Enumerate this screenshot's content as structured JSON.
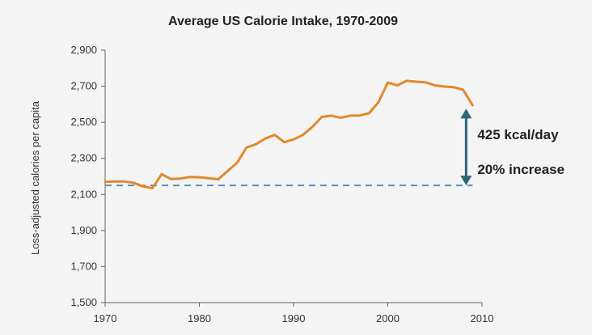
{
  "chart_data": {
    "type": "line",
    "title": "Average US Calorie Intake, 1970-2009",
    "xlabel": "",
    "ylabel": "Loss-adjusted calories per capita",
    "xlim": [
      1970,
      2010
    ],
    "ylim": [
      1500,
      2900
    ],
    "xticks": [
      1970,
      1980,
      1990,
      2000,
      2010
    ],
    "yticks": [
      1500,
      1700,
      1900,
      2100,
      2300,
      2500,
      2700,
      2900
    ],
    "ytick_labels": [
      "1,500",
      "1,700",
      "1,900",
      "2,100",
      "2,300",
      "2,500",
      "2,700",
      "2,900"
    ],
    "grid": false,
    "series": [
      {
        "color": "#e08a2b",
        "x": [
          1970,
          1971,
          1972,
          1973,
          1974,
          1975,
          1976,
          1977,
          1978,
          1979,
          1980,
          1981,
          1982,
          1983,
          1984,
          1985,
          1986,
          1987,
          1988,
          1989,
          1990,
          1991,
          1992,
          1993,
          1994,
          1995,
          1996,
          1997,
          1998,
          1999,
          2000,
          2001,
          2002,
          2003,
          2004,
          2005,
          2006,
          2007,
          2008,
          2009
        ],
        "y": [
          2170,
          2172,
          2172,
          2165,
          2145,
          2135,
          2212,
          2185,
          2188,
          2197,
          2195,
          2190,
          2184,
          2230,
          2275,
          2360,
          2378,
          2410,
          2430,
          2390,
          2405,
          2430,
          2475,
          2530,
          2537,
          2525,
          2537,
          2538,
          2550,
          2610,
          2720,
          2705,
          2730,
          2725,
          2722,
          2705,
          2698,
          2695,
          2680,
          2595
        ]
      }
    ],
    "baseline": {
      "value": 2150,
      "style": "dashed",
      "color": "#5b8fc0"
    },
    "annotation": {
      "from": 2150,
      "to": 2575,
      "x": 2009,
      "color": "#2f6577",
      "lines": [
        "425 kcal/day",
        "20% increase"
      ]
    }
  }
}
